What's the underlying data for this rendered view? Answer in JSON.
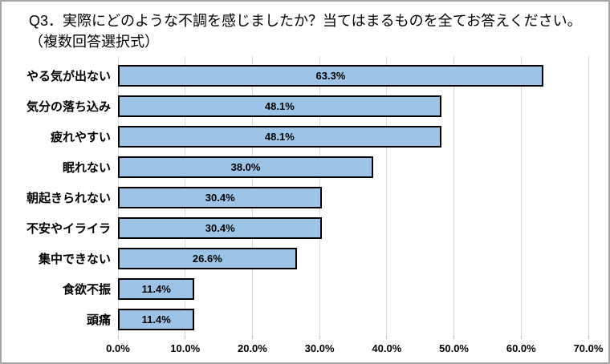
{
  "title": {
    "line1": "Q3．実際にどのような不調を感じましたか？当てはまるものを全てお答えください。",
    "line2": "（複数回答選択式）"
  },
  "chart_data": {
    "type": "bar",
    "orientation": "horizontal",
    "title": "Q3．実際にどのような不調を感じましたか？当てはまるものを全てお答えください。（複数回答選択式）",
    "categories": [
      "やる気が出ない",
      "気分の落ち込み",
      "疲れやすい",
      "眠れない",
      "朝起きられない",
      "不安やイライラ",
      "集中できない",
      "食欲不振",
      "頭痛"
    ],
    "values": [
      63.3,
      48.1,
      48.1,
      38.0,
      30.4,
      30.4,
      26.6,
      11.4,
      11.4
    ],
    "value_labels": [
      "63.3%",
      "48.1%",
      "48.1%",
      "38.0%",
      "30.4%",
      "30.4%",
      "26.6%",
      "11.4%",
      "11.4%"
    ],
    "xlabel": "",
    "ylabel": "",
    "xlim": [
      0,
      70
    ],
    "x_ticks": [
      0,
      10,
      20,
      30,
      40,
      50,
      60,
      70
    ],
    "x_tick_labels": [
      "0.0%",
      "10.0%",
      "20.0%",
      "30.0%",
      "40.0%",
      "50.0%",
      "60.0%",
      "70.0%"
    ],
    "grid": "vertical",
    "legend": "none",
    "colors": {
      "bar_fill": "#9dc3e6",
      "bar_border": "#000000",
      "gridline": "#d9d9d9",
      "tick": "#bfbfbf",
      "text": "#000000",
      "frame_border": "#a6a6a6",
      "background": "#ffffff"
    }
  }
}
